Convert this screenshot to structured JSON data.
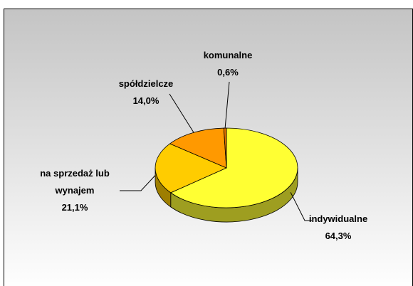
{
  "chart_data": {
    "type": "pie3d",
    "categories": [
      "indywidualne",
      "na sprzedaż lub wynajem",
      "spółdzielcze",
      "komunalne"
    ],
    "values": [
      64.3,
      21.1,
      14.0,
      0.6
    ],
    "value_labels": [
      "64,3%",
      "21,1%",
      "14,0%",
      "0,6%"
    ],
    "colors": [
      "#ffff33",
      "#ffcc00",
      "#ff9900",
      "#e07000"
    ]
  }
}
